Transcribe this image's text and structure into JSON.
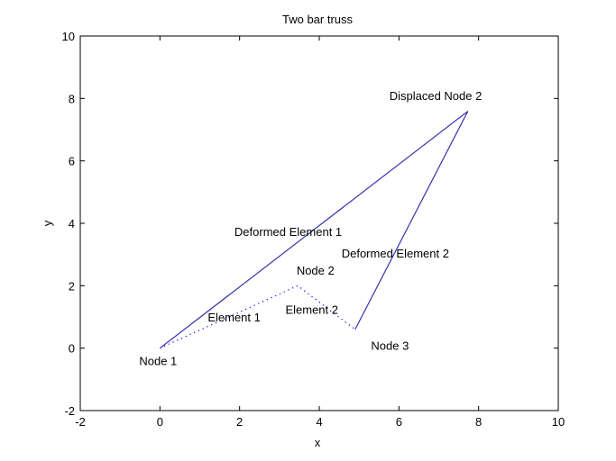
{
  "chart_data": {
    "type": "line",
    "title": "Two bar truss",
    "xlabel": "x",
    "ylabel": "y",
    "xlim": [
      -2,
      10
    ],
    "ylim": [
      -2,
      10
    ],
    "xticks": [
      -2,
      0,
      2,
      4,
      6,
      8,
      10
    ],
    "yticks": [
      -2,
      0,
      2,
      4,
      6,
      8,
      10
    ],
    "grid": false,
    "series": [
      {
        "style": "dotted",
        "color": "#0000ff",
        "x": [
          0,
          3.46,
          4.9
        ],
        "y": [
          0,
          2.0,
          0.6
        ]
      },
      {
        "style": "solid",
        "color": "#3333aa",
        "x": [
          0,
          7.73,
          4.9
        ],
        "y": [
          0,
          7.59,
          0.6
        ]
      }
    ],
    "annotations": [
      {
        "text": "Node 1",
        "x": -0.52,
        "y": -0.55
      },
      {
        "text": "Element 1",
        "x": 1.2,
        "y": 0.85
      },
      {
        "text": "Node 2",
        "x": 3.43,
        "y": 2.35
      },
      {
        "text": "Element 2",
        "x": 3.15,
        "y": 1.1
      },
      {
        "text": "Node 3",
        "x": 5.3,
        "y": -0.05
      },
      {
        "text": "Deformed Element 1",
        "x": 1.87,
        "y": 3.6
      },
      {
        "text": "Deformed Element 2",
        "x": 4.56,
        "y": 2.9
      },
      {
        "text": "Displaced Node 2",
        "x": 5.76,
        "y": 7.95
      }
    ]
  }
}
